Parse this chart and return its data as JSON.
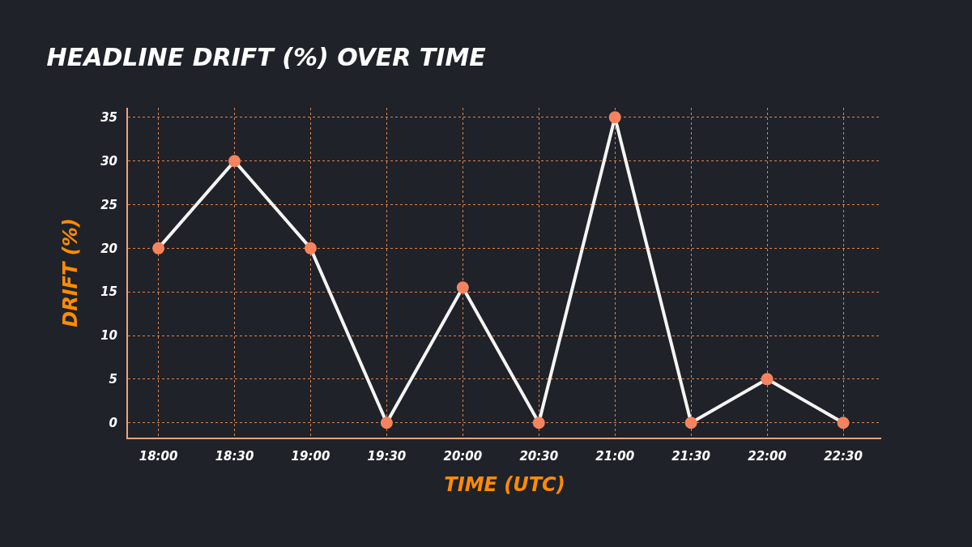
{
  "chart_data": {
    "type": "line",
    "title": "HEADLINE DRIFT (%) OVER TIME",
    "xlabel": "TIME (UTC)",
    "ylabel": "DRIFT (%)",
    "x": [
      18,
      18.5,
      19,
      19.5,
      20,
      20.5,
      21,
      21.5,
      22,
      22.5
    ],
    "series": [
      {
        "color": "#f5f5f5",
        "colors": [
          "#f4845f",
          "#f4845f",
          "#f4845f",
          "#f4845f",
          "#f4845f",
          "#f4845f",
          "#f4845f",
          "#f4845f",
          "#f4845f",
          "#f4845f"
        ],
        "values": [
          20,
          30,
          20,
          0,
          15.5,
          0,
          35,
          0,
          5,
          0
        ]
      }
    ],
    "marker": "circle",
    "line_style": "solid",
    "xlim": [
      17.8,
      22.75
    ],
    "xticks": [
      {
        "value": 18,
        "label": "18:00"
      },
      {
        "value": 18.5,
        "label": "18:30"
      },
      {
        "value": 19,
        "label": "19:00"
      },
      {
        "value": 19.5,
        "label": "19:30"
      },
      {
        "value": 20,
        "label": "20:00"
      },
      {
        "value": 20.5,
        "label": "20:30"
      },
      {
        "value": 21,
        "label": "21:00"
      },
      {
        "value": 21.5,
        "label": "21:30"
      },
      {
        "value": 22,
        "label": "22:00"
      },
      {
        "value": 22.5,
        "label": "22:30"
      }
    ],
    "ylim": [
      -1.7,
      36.1
    ],
    "yticks": [
      0,
      5,
      10,
      15,
      20,
      25,
      30,
      35
    ],
    "grid": true
  }
}
